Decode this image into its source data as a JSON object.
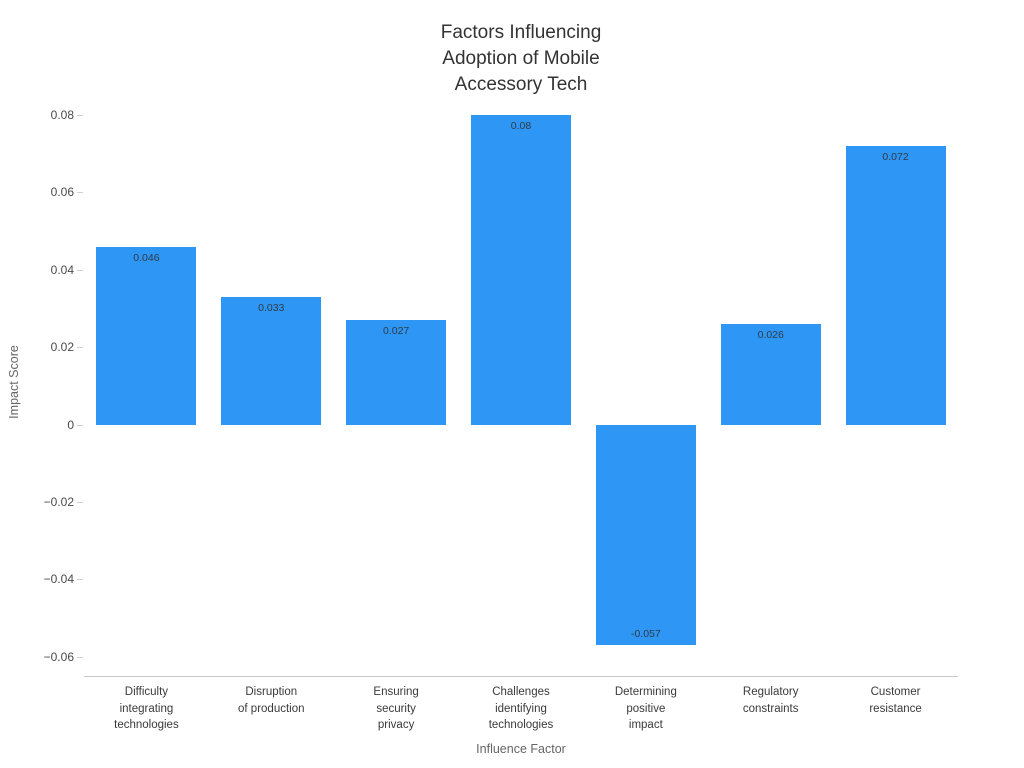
{
  "chart_data": {
    "type": "bar",
    "title": "Factors Influencing\nAdoption of Mobile\nAccessory Tech",
    "xlabel": "Influence Factor",
    "ylabel": "Impact Score",
    "categories": [
      "Difficulty\nintegrating\ntechnologies",
      "Disruption\nof production",
      "Ensuring\nsecurity\nprivacy",
      "Challenges\nidentifying\ntechnologies",
      "Determining\npositive\nimpact",
      "Regulatory\nconstraints",
      "Customer\nresistance"
    ],
    "values": [
      0.046,
      0.033,
      0.027,
      0.08,
      -0.057,
      0.026,
      0.072
    ],
    "value_labels": [
      "0.046",
      "0.033",
      "0.027",
      "0.08",
      "-0.057",
      "0.026",
      "0.072"
    ],
    "y_ticks": [
      -0.06,
      -0.04,
      -0.02,
      0,
      0.02,
      0.04,
      0.06,
      0.08
    ],
    "y_tick_labels": [
      "−0.06",
      "−0.04",
      "−0.02",
      "0",
      "0.02",
      "0.04",
      "0.06",
      "0.08"
    ],
    "ylim": [
      -0.065,
      0.087
    ],
    "bar_color": "#2E96F5",
    "grid": false,
    "legend": false
  }
}
